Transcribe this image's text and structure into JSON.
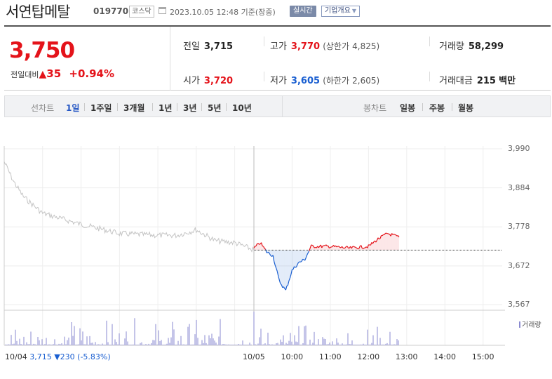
{
  "header": {
    "stock_name": "서연탑메탈",
    "stock_code": "019770",
    "market": "코스닥",
    "datetime": "2023.10.05 12:48 기준(장중)",
    "realtime_label": "실시간",
    "overview_label": "기업개요"
  },
  "quote": {
    "price": "3,750",
    "change_label": "전일대비",
    "change_arrow": "▲",
    "change_amount": "35",
    "change_percent": "+0.94%",
    "prev_close_label": "전일",
    "prev_close": "3,715",
    "high_label": "고가",
    "high": "3,770",
    "upper_limit_label": "(상한가",
    "upper_limit": "4,825)",
    "volume_label": "거래량",
    "volume": "58,299",
    "open_label": "시가",
    "open": "3,720",
    "low_label": "저가",
    "low": "3,605",
    "lower_limit_label": "(하한가",
    "lower_limit": "2,605)",
    "amount_label": "거래대금",
    "amount": "215",
    "amount_unit": "백만"
  },
  "tabs": {
    "line_label": "선차트",
    "line_items": [
      "1일",
      "1주일",
      "3개월",
      "1년",
      "3년",
      "5년",
      "10년"
    ],
    "active": "1일",
    "candle_label": "봉차트",
    "candle_items": [
      "일봉",
      "주봉",
      "월봉"
    ]
  },
  "chart_data": {
    "type": "line",
    "y_ticks": [
      "3,990",
      "3,884",
      "3,778",
      "3,672",
      "3,567"
    ],
    "ylim": [
      3567,
      3990
    ],
    "x_ticks": [
      "10/04",
      "10/05",
      "10:00",
      "11:00",
      "12:00",
      "13:00",
      "14:00",
      "15:00"
    ],
    "reference_price": 3715,
    "series": [
      {
        "x": [
          "10/04 09:00",
          "10/04 09:15",
          "10/04 09:30",
          "10/04 10:00",
          "10/04 10:30",
          "10/04 11:00",
          "10/04 12:00",
          "10/04 13:00",
          "10/04 13:30",
          "10/04 14:00",
          "10/04 14:30",
          "10/04 15:00",
          "10/04 15:30"
        ],
        "values": [
          3955,
          3900,
          3860,
          3815,
          3800,
          3785,
          3760,
          3755,
          3755,
          3770,
          3740,
          3735,
          3715
        ]
      },
      {
        "x": [
          "09:00",
          "09:10",
          "09:20",
          "09:30",
          "09:40",
          "09:50",
          "10:00",
          "10:10",
          "10:20",
          "10:30",
          "11:00",
          "11:30",
          "12:00",
          "12:15",
          "12:30",
          "12:48"
        ],
        "values": [
          3720,
          3735,
          3710,
          3700,
          3630,
          3605,
          3660,
          3680,
          3690,
          3725,
          3725,
          3720,
          3725,
          3745,
          3760,
          3750
        ]
      }
    ],
    "volume_label": "거래량"
  },
  "footer": {
    "prev_price": "3,715",
    "prev_arrow": "▼",
    "prev_change": "230",
    "prev_percent": "(-5.83%)"
  },
  "colors": {
    "up": "#e4131a",
    "down": "#1a5fd1",
    "prev_line": "#c4c4c4",
    "volume": "#8a8ad0"
  }
}
